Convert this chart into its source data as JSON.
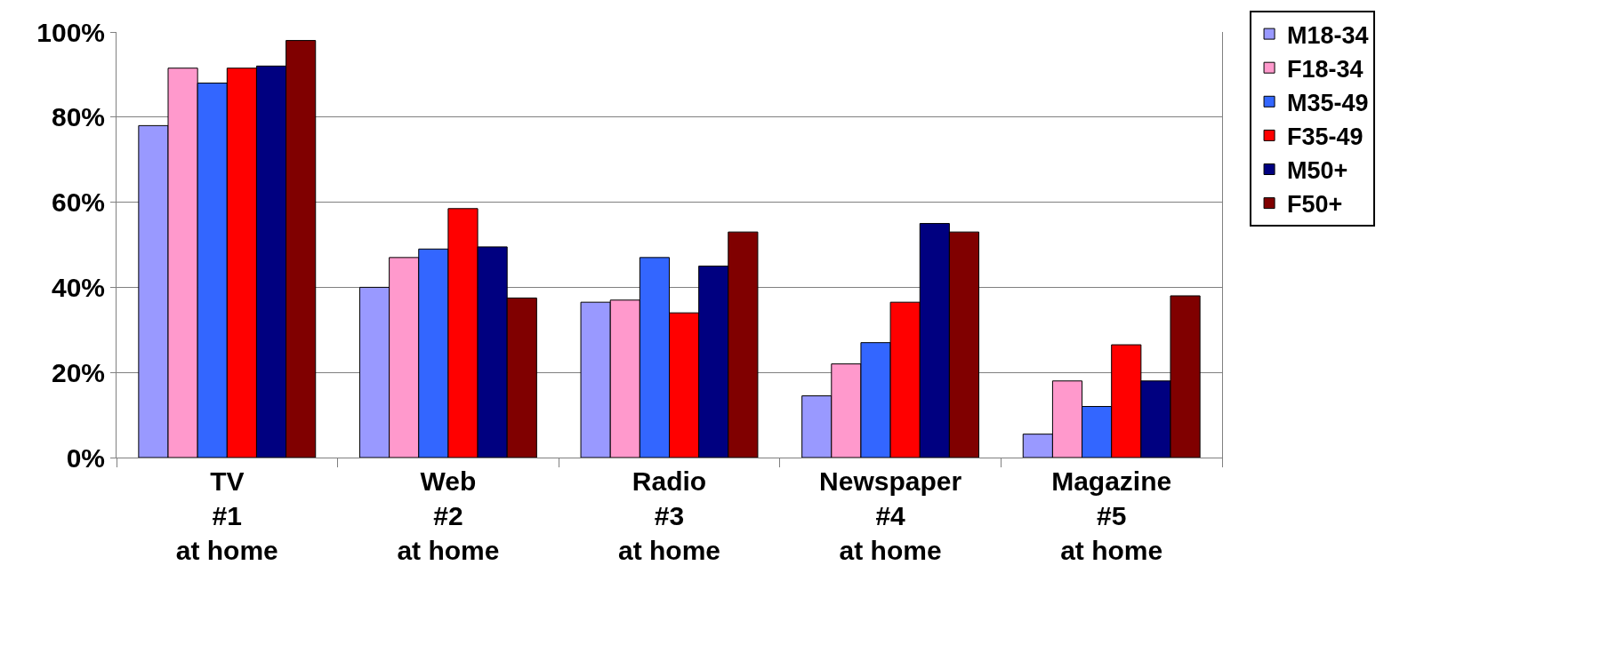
{
  "chart_data": {
    "type": "bar",
    "categories": [
      "TV\n#1\nat home",
      "Web\n#2\nat home",
      "Radio\n#3\nat home",
      "Newspaper\n#4\nat home",
      "Magazine\n#5\nat home"
    ],
    "series": [
      {
        "name": "M18-34",
        "color": "#9999ff",
        "values": [
          78,
          40,
          36.5,
          14.5,
          5.5
        ]
      },
      {
        "name": "F18-34",
        "color": "#ff99cc",
        "values": [
          91.5,
          47,
          37,
          22,
          18
        ]
      },
      {
        "name": "M35-49",
        "color": "#3366ff",
        "values": [
          88,
          49,
          47,
          27,
          12
        ]
      },
      {
        "name": "F35-49",
        "color": "#ff0000",
        "values": [
          91.5,
          58.5,
          34,
          36.5,
          26.5
        ]
      },
      {
        "name": "M50+",
        "color": "#000080",
        "values": [
          92,
          49.5,
          45,
          55,
          18
        ]
      },
      {
        "name": "F50+",
        "color": "#800000",
        "values": [
          98,
          37.5,
          53,
          53,
          38
        ]
      }
    ],
    "ylim": [
      0,
      100
    ],
    "yticks": [
      {
        "value": 0,
        "label": "0%"
      },
      {
        "value": 20,
        "label": "20%"
      },
      {
        "value": 40,
        "label": "40%"
      },
      {
        "value": 60,
        "label": "60%"
      },
      {
        "value": 80,
        "label": "80%"
      },
      {
        "value": 100,
        "label": "100%"
      }
    ],
    "grid": "y",
    "legend": "top right"
  }
}
